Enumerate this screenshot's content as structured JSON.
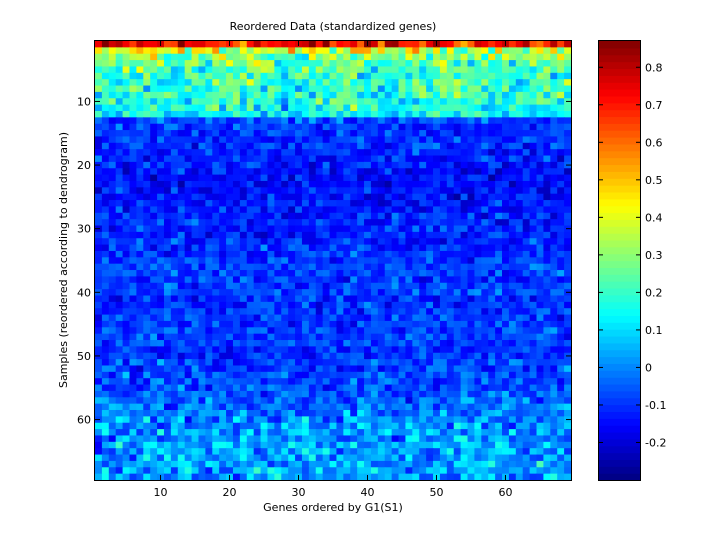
{
  "chart_data": {
    "type": "heatmap",
    "title": "Reordered Data (standardized genes)",
    "xlabel": "Genes ordered by G1(S1)",
    "ylabel": "Samples (reordered according to dendrogram)",
    "n_cols": 69,
    "n_rows": 69,
    "x_range": [
      1,
      69
    ],
    "y_range": [
      1,
      69
    ],
    "x_ticks": [
      10,
      20,
      30,
      40,
      50,
      60
    ],
    "y_ticks": [
      10,
      20,
      30,
      40,
      50,
      60
    ],
    "y_axis_reversed": true,
    "colormap": "jet",
    "colorbar": {
      "range": [
        -0.3,
        0.87
      ],
      "ticks": [
        -0.2,
        -0.1,
        0,
        0.1,
        0.2,
        0.3,
        0.4,
        0.5,
        0.6,
        0.7,
        0.8
      ],
      "tick_labels": [
        "-0.2",
        "-0.1",
        "0",
        "0.1",
        "0.2",
        "0.3",
        "0.4",
        "0.5",
        "0.6",
        "0.7",
        "0.8"
      ]
    },
    "row_profile_mean": [
      0.72,
      0.38,
      0.28,
      0.26,
      0.22,
      0.2,
      0.2,
      0.2,
      0.19,
      0.18,
      0.16,
      0.12,
      -0.08,
      -0.1,
      -0.1,
      -0.1,
      -0.1,
      -0.12,
      -0.11,
      -0.12,
      -0.14,
      -0.14,
      -0.15,
      -0.14,
      -0.14,
      -0.13,
      -0.12,
      -0.12,
      -0.11,
      -0.12,
      -0.12,
      -0.1,
      -0.1,
      -0.1,
      -0.08,
      -0.08,
      -0.09,
      -0.1,
      -0.09,
      -0.08,
      -0.1,
      -0.1,
      -0.09,
      -0.09,
      -0.09,
      -0.08,
      -0.08,
      -0.08,
      -0.1,
      -0.1,
      -0.08,
      -0.08,
      -0.07,
      -0.07,
      -0.06,
      -0.05,
      -0.04,
      -0.02,
      -0.01,
      0.0,
      0.01,
      0.02,
      0.0,
      0.04,
      0.03,
      0.02,
      0.04,
      0.02,
      0.03
    ],
    "row_profile_spread": [
      0.14,
      0.12,
      0.11,
      0.1,
      0.1,
      0.1,
      0.1,
      0.1,
      0.1,
      0.09,
      0.09,
      0.08,
      0.07,
      0.06,
      0.06,
      0.06,
      0.06,
      0.06,
      0.06,
      0.06,
      0.06,
      0.06,
      0.06,
      0.06,
      0.06,
      0.06,
      0.06,
      0.06,
      0.06,
      0.06,
      0.06,
      0.06,
      0.06,
      0.06,
      0.06,
      0.06,
      0.06,
      0.06,
      0.06,
      0.06,
      0.06,
      0.06,
      0.06,
      0.06,
      0.06,
      0.06,
      0.06,
      0.06,
      0.06,
      0.06,
      0.07,
      0.07,
      0.07,
      0.07,
      0.07,
      0.07,
      0.08,
      0.08,
      0.08,
      0.08,
      0.09,
      0.09,
      0.09,
      0.09,
      0.09,
      0.09,
      0.09,
      0.09,
      0.09
    ]
  },
  "style": {
    "background": "#ffffff",
    "axes_color": "#000000"
  }
}
